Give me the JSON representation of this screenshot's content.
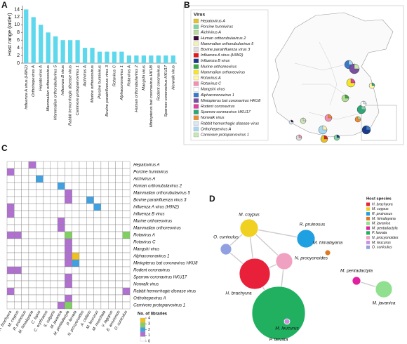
{
  "chart_data": [
    {
      "type": "bar",
      "panel": "A",
      "ylabel": "Host range (order)",
      "categories": [
        "Influenza A virus (H9N2)",
        "Orthohepevirus A",
        "Hepatovirus A",
        "Mammalian orthoreovirus",
        "Mammalian orthorubulavirus 5",
        "Influenza B virus",
        "Rabbit hemorrhagic disease virus",
        "Carnivore protoparvovirus 1",
        "Aichivirus A",
        "Murine orthoreovirus",
        "Porcine hunnivirus",
        "Bovine parainfluenza virus 3",
        "Rotavirus C",
        "Alphacoronavirus 1",
        "Rotavirus A",
        "Human orthorubulavirus 2",
        "Mangshi virus",
        "Miniopterus bat coronavirus HKU8",
        "Rodent coronavirus",
        "Sparrow coronavirus HKU17",
        "Norwalk virus"
      ],
      "values": [
        14,
        12,
        10,
        8,
        7,
        6,
        6,
        6,
        4,
        4,
        3,
        3,
        3,
        3,
        2,
        2,
        2,
        2,
        2,
        2,
        2
      ],
      "color": "#5dd8ec",
      "ylim": [
        0,
        15
      ],
      "yticks": [
        0,
        2,
        4,
        6,
        8,
        10,
        12,
        14
      ]
    },
    {
      "type": "map",
      "panel": "B",
      "legend_title": "Virus",
      "series": [
        {
          "name": "Hepatovirus A",
          "color": "#e6c229"
        },
        {
          "name": "Porcine hunnivirus",
          "color": "#7fd3a0"
        },
        {
          "name": "Aichivirus A",
          "color": "#b5dc96"
        },
        {
          "name": "Human orthorubulavirus 2",
          "color": "#3a0c35"
        },
        {
          "name": "Mammalian orthorubulavirus 5",
          "color": "#f4f0b8"
        },
        {
          "name": "Bovine parainfluenza virus 3",
          "color": "#dcdcdc"
        },
        {
          "name": "Influenza A virus (H9N2)",
          "color": "#e31a1c"
        },
        {
          "name": "Influenza B virus",
          "color": "#1a3a8c"
        },
        {
          "name": "Murine orthoreovirus",
          "color": "#3aa845"
        },
        {
          "name": "Mammalian orthoreovirus",
          "color": "#f5e62a"
        },
        {
          "name": "Rotavirus A",
          "color": "#fff6a8"
        },
        {
          "name": "Rotavirus C",
          "color": "#f48fb1"
        },
        {
          "name": "Mangshi virus",
          "color": "#ffffff"
        },
        {
          "name": "Alphacoronavirus 1",
          "color": "#3a78c8"
        },
        {
          "name": "Miniopterus bat coronavirus HKU8",
          "color": "#7b4fa0"
        },
        {
          "name": "Rodent coronavirus",
          "color": "#e040a0"
        },
        {
          "name": "Sparrow coronavirus HKU17",
          "color": "#2fa57a"
        },
        {
          "name": "Norwalk virus",
          "color": "#f08a30"
        },
        {
          "name": "Rabbit hemorrhagic disease virus",
          "color": "#d8e8f0"
        },
        {
          "name": "Orthohepevirus A",
          "color": "#a8d8f0"
        },
        {
          "name": "Carnivore protoparvovirus 1",
          "color": "#c8e8b0"
        }
      ]
    },
    {
      "type": "heatmap",
      "panel": "C",
      "colorbar_title": "No. of libraries",
      "rows": [
        "Hepatovirus A",
        "Porcine hunnivirus",
        "Aichivirus A",
        "Human orthorubulavirus 2",
        "Mammalian orthorubulavirus 5",
        "Bovine parainfluenza virus 3",
        "Influenza A virus (H9N2)",
        "Influenza B virus",
        "Murine orthoreovirus",
        "Mammalian orthoreovirus",
        "Rotavirus A",
        "Rotavirus C",
        "Mangshi virus",
        "Alphacoronavirus 1",
        "Miniopterus bat coronavirus HKU8",
        "Rodent coronavirus",
        "Sparrow coronavirus HKU17",
        "Norwalk virus",
        "Rabbit hemorrhagic disease virus",
        "Orthohepevirus A",
        "Carnivore protoparvovirus 1"
      ],
      "columns": [
        "H. brachyura",
        "M. coypus",
        "R. pruinosus",
        "M. himalayana",
        "C. lupus",
        "C. erythraeus",
        "S. vulgaris",
        "M. javanica",
        "M. pentadactyla",
        "P. larvata",
        "N. procyonoides",
        "A. collaris",
        "M. leucurus",
        "M. moschata",
        "V. lagopus",
        "E. amurensis",
        "O. cuniculus"
      ],
      "values": [
        [
          0,
          0,
          0,
          1,
          0,
          0,
          0,
          0,
          0,
          0,
          0,
          0,
          0,
          0,
          0,
          0,
          0
        ],
        [
          1,
          0,
          0,
          0,
          0,
          0,
          0,
          0,
          0,
          0,
          0,
          0,
          0,
          0,
          0,
          0,
          0
        ],
        [
          0,
          0,
          0,
          0,
          2,
          0,
          0,
          0,
          0,
          0,
          0,
          0,
          0,
          0,
          0,
          0,
          0
        ],
        [
          0,
          0,
          0,
          0,
          0,
          0,
          0,
          2,
          0,
          0,
          0,
          0,
          0,
          0,
          0,
          0,
          0
        ],
        [
          0,
          0,
          0,
          0,
          0,
          0,
          0,
          0,
          1,
          0,
          0,
          0,
          0,
          0,
          0,
          0,
          0
        ],
        [
          0,
          0,
          0,
          0,
          0,
          0,
          0,
          0,
          1,
          0,
          0,
          2,
          0,
          0,
          0,
          0,
          0
        ],
        [
          1,
          0,
          0,
          0,
          0,
          0,
          0,
          0,
          0,
          0,
          0,
          0,
          2,
          0,
          0,
          0,
          0
        ],
        [
          1,
          0,
          0,
          0,
          0,
          0,
          0,
          0,
          0,
          0,
          0,
          0,
          0,
          0,
          0,
          0,
          0
        ],
        [
          0,
          0,
          0,
          0,
          0,
          0,
          0,
          1,
          0,
          0,
          0,
          0,
          0,
          0,
          0,
          0,
          0
        ],
        [
          0,
          0,
          0,
          0,
          0,
          0,
          0,
          1,
          0,
          0,
          0,
          0,
          0,
          0,
          0,
          0,
          0
        ],
        [
          1,
          1,
          0,
          0,
          0,
          0,
          0,
          0,
          3,
          0,
          0,
          0,
          0,
          0,
          0,
          0,
          3
        ],
        [
          0,
          0,
          0,
          0,
          0,
          0,
          0,
          0,
          1,
          0,
          0,
          0,
          0,
          0,
          0,
          0,
          0
        ],
        [
          0,
          0,
          0,
          0,
          0,
          0,
          0,
          0,
          1,
          0,
          0,
          0,
          0,
          0,
          0,
          0,
          0
        ],
        [
          0,
          0,
          0,
          0,
          0,
          0,
          0,
          0,
          1,
          4,
          0,
          0,
          0,
          0,
          0,
          0,
          0
        ],
        [
          0,
          0,
          0,
          0,
          0,
          0,
          0,
          0,
          1,
          2,
          0,
          0,
          0,
          0,
          0,
          0,
          0
        ],
        [
          1,
          1,
          0,
          0,
          0,
          0,
          0,
          0,
          0,
          0,
          0,
          0,
          0,
          0,
          0,
          0,
          0
        ],
        [
          0,
          0,
          0,
          0,
          0,
          0,
          0,
          0,
          1,
          0,
          0,
          0,
          0,
          0,
          0,
          0,
          0
        ],
        [
          0,
          0,
          0,
          0,
          0,
          0,
          0,
          0,
          1,
          0,
          0,
          0,
          0,
          0,
          0,
          0,
          0
        ],
        [
          1,
          0,
          0,
          0,
          0,
          0,
          0,
          0,
          0,
          0,
          0,
          0,
          0,
          0,
          0,
          0,
          1
        ],
        [
          0,
          0,
          0,
          0,
          0,
          0,
          0,
          0,
          1,
          0,
          0,
          0,
          0,
          0,
          0,
          0,
          0
        ],
        [
          0,
          0,
          0,
          0,
          0,
          0,
          0,
          1,
          3,
          0,
          0,
          0,
          0,
          0,
          0,
          0,
          0
        ]
      ],
      "colorscale": [
        "#ffffff",
        "#b070d0",
        "#40a0e0",
        "#80d060",
        "#f0c020"
      ],
      "zlim": [
        0,
        4
      ],
      "zticks": [
        0,
        1,
        2,
        3,
        4
      ]
    },
    {
      "type": "network",
      "panel": "D",
      "legend_title": "Host species",
      "nodes": [
        {
          "label": "H. brachyura",
          "color": "#e8203a"
        },
        {
          "label": "M. coypus",
          "color": "#f0d020"
        },
        {
          "label": "R. pruinosus",
          "color": "#1fa0e0"
        },
        {
          "label": "M. himalayana",
          "color": "#e07820"
        },
        {
          "label": "M. javanica",
          "color": "#90e090"
        },
        {
          "label": "M. pentadactyla",
          "color": "#e020a0"
        },
        {
          "label": "P. larvata",
          "color": "#20b060"
        },
        {
          "label": "N. procyonoides",
          "color": "#f0a0c0"
        },
        {
          "label": "M. leucurus",
          "color": "#d090e0"
        },
        {
          "label": "O. cuniculus",
          "color": "#90a0e0"
        }
      ]
    }
  ]
}
